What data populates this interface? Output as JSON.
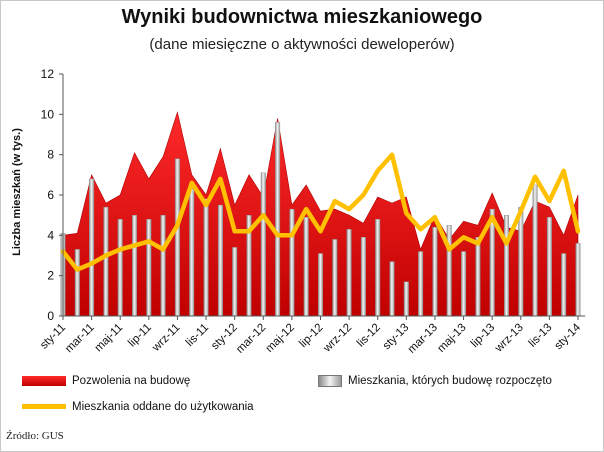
{
  "chart_data": {
    "type": "bar",
    "title": "Wyniki budownictwa mieszkaniowego",
    "subtitle": "(dane miesięczne o aktywności deweloperów)",
    "ylabel": "Liczba  mieszkań (w tys.)",
    "xlabel": "",
    "ylim": [
      0,
      12
    ],
    "yticks": [
      0,
      2,
      4,
      6,
      8,
      10,
      12
    ],
    "grid": false,
    "legend_position": "bottom",
    "tick_labels": [
      "sty-11",
      "mar-11",
      "maj-11",
      "lip-11",
      "wrz-11",
      "lis-11",
      "sty-12",
      "mar-12",
      "maj-12",
      "lip-12",
      "wrz-12",
      "lis-12",
      "sty-13",
      "mar-13",
      "maj-13",
      "lip-13",
      "wrz-13",
      "lis-13",
      "sty-14"
    ],
    "categories": [
      "sty-11",
      "lut-11",
      "mar-11",
      "kwi-11",
      "maj-11",
      "cze-11",
      "lip-11",
      "sie-11",
      "wrz-11",
      "paź-11",
      "lis-11",
      "gru-11",
      "sty-12",
      "lut-12",
      "mar-12",
      "kwi-12",
      "maj-12",
      "cze-12",
      "lip-12",
      "sie-12",
      "wrz-12",
      "paź-12",
      "lis-12",
      "gru-12",
      "sty-13",
      "lut-13",
      "mar-13",
      "kwi-13",
      "maj-13",
      "cze-13",
      "lip-13",
      "sie-13",
      "wrz-13",
      "paź-13",
      "lis-13",
      "gru-13",
      "sty-14"
    ],
    "series": [
      {
        "name": "Pozwolenia na budowę",
        "kind": "area",
        "color": "#e00000",
        "values": [
          4.0,
          4.1,
          7.0,
          5.6,
          6.0,
          8.1,
          6.8,
          7.9,
          10.1,
          7.0,
          6.0,
          8.3,
          5.5,
          7.0,
          5.9,
          9.8,
          5.5,
          6.5,
          5.2,
          5.3,
          5.0,
          4.6,
          5.9,
          5.6,
          5.9,
          3.3,
          5.0,
          3.8,
          4.7,
          4.5,
          6.1,
          4.4,
          4.2,
          5.7,
          5.4,
          4.0,
          6.0
        ]
      },
      {
        "name": "Mieszkania, których budowę rozpoczęto",
        "kind": "bar",
        "color": "#b8b8b8",
        "values": [
          4.1,
          3.3,
          6.8,
          5.4,
          4.8,
          5.0,
          4.8,
          5.0,
          7.8,
          6.3,
          5.8,
          5.5,
          3.4,
          5.0,
          7.1,
          9.6,
          5.3,
          4.9,
          3.1,
          3.8,
          4.3,
          3.9,
          4.8,
          2.7,
          1.7,
          3.2,
          4.4,
          4.5,
          3.2,
          3.9,
          5.3,
          5.0,
          5.4,
          6.5,
          4.9,
          3.1,
          3.6
        ]
      },
      {
        "name": "Mieszkania oddane do użytkowania",
        "kind": "line",
        "color": "#ffc000",
        "values": [
          3.2,
          2.3,
          2.6,
          3.0,
          3.3,
          3.5,
          3.7,
          3.3,
          4.5,
          6.6,
          5.5,
          6.8,
          4.2,
          4.2,
          5.0,
          4.0,
          4.0,
          5.3,
          4.2,
          5.7,
          5.3,
          6.0,
          7.2,
          8.0,
          5.1,
          4.3,
          4.9,
          3.3,
          3.9,
          3.6,
          4.9,
          3.6,
          5.2,
          6.9,
          5.7,
          7.2,
          4.2
        ]
      }
    ]
  },
  "legend": {
    "permits": "Pozwolenia na budowę",
    "starts": "Mieszkania, których budowę rozpoczęto",
    "completed": "Mieszkania oddane do użytkowania"
  },
  "source": "Źródło: GUS"
}
